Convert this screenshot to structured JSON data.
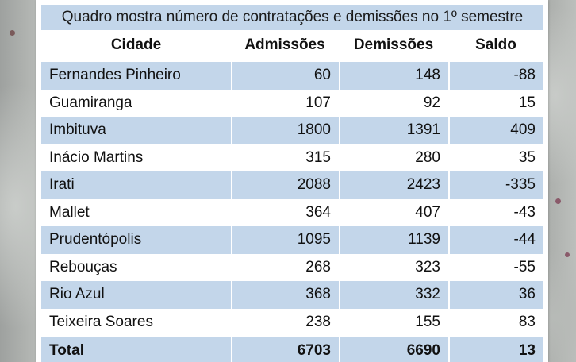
{
  "caption": "Quadro mostra número de contratações e demissões no 1º semestre",
  "headers": {
    "city": "Cidade",
    "admissions": "Admissões",
    "dismissals": "Demissões",
    "balance": "Saldo"
  },
  "rows": [
    {
      "city": "Fernandes Pinheiro",
      "admissions": "60",
      "dismissals": "148",
      "balance": "-88"
    },
    {
      "city": "Guamiranga",
      "admissions": "107",
      "dismissals": "92",
      "balance": "15"
    },
    {
      "city": "Imbituva",
      "admissions": "1800",
      "dismissals": "1391",
      "balance": "409"
    },
    {
      "city": "Inácio Martins",
      "admissions": "315",
      "dismissals": "280",
      "balance": "35"
    },
    {
      "city": "Irati",
      "admissions": "2088",
      "dismissals": "2423",
      "balance": "-335"
    },
    {
      "city": "Mallet",
      "admissions": "364",
      "dismissals": "407",
      "balance": "-43"
    },
    {
      "city": "Prudentópolis",
      "admissions": "1095",
      "dismissals": "1139",
      "balance": "-44"
    },
    {
      "city": "Rebouças",
      "admissions": "268",
      "dismissals": "323",
      "balance": "-55"
    },
    {
      "city": "Rio Azul",
      "admissions": "368",
      "dismissals": "332",
      "balance": "36"
    },
    {
      "city": "Teixeira Soares",
      "admissions": "238",
      "dismissals": "155",
      "balance": "83"
    }
  ],
  "total": {
    "label": "Total",
    "admissions": "6703",
    "dismissals": "6690",
    "balance": "13"
  },
  "colors": {
    "row_shade": "#c3d6ea",
    "card": "#ffffff",
    "background": "#a9aca9"
  }
}
